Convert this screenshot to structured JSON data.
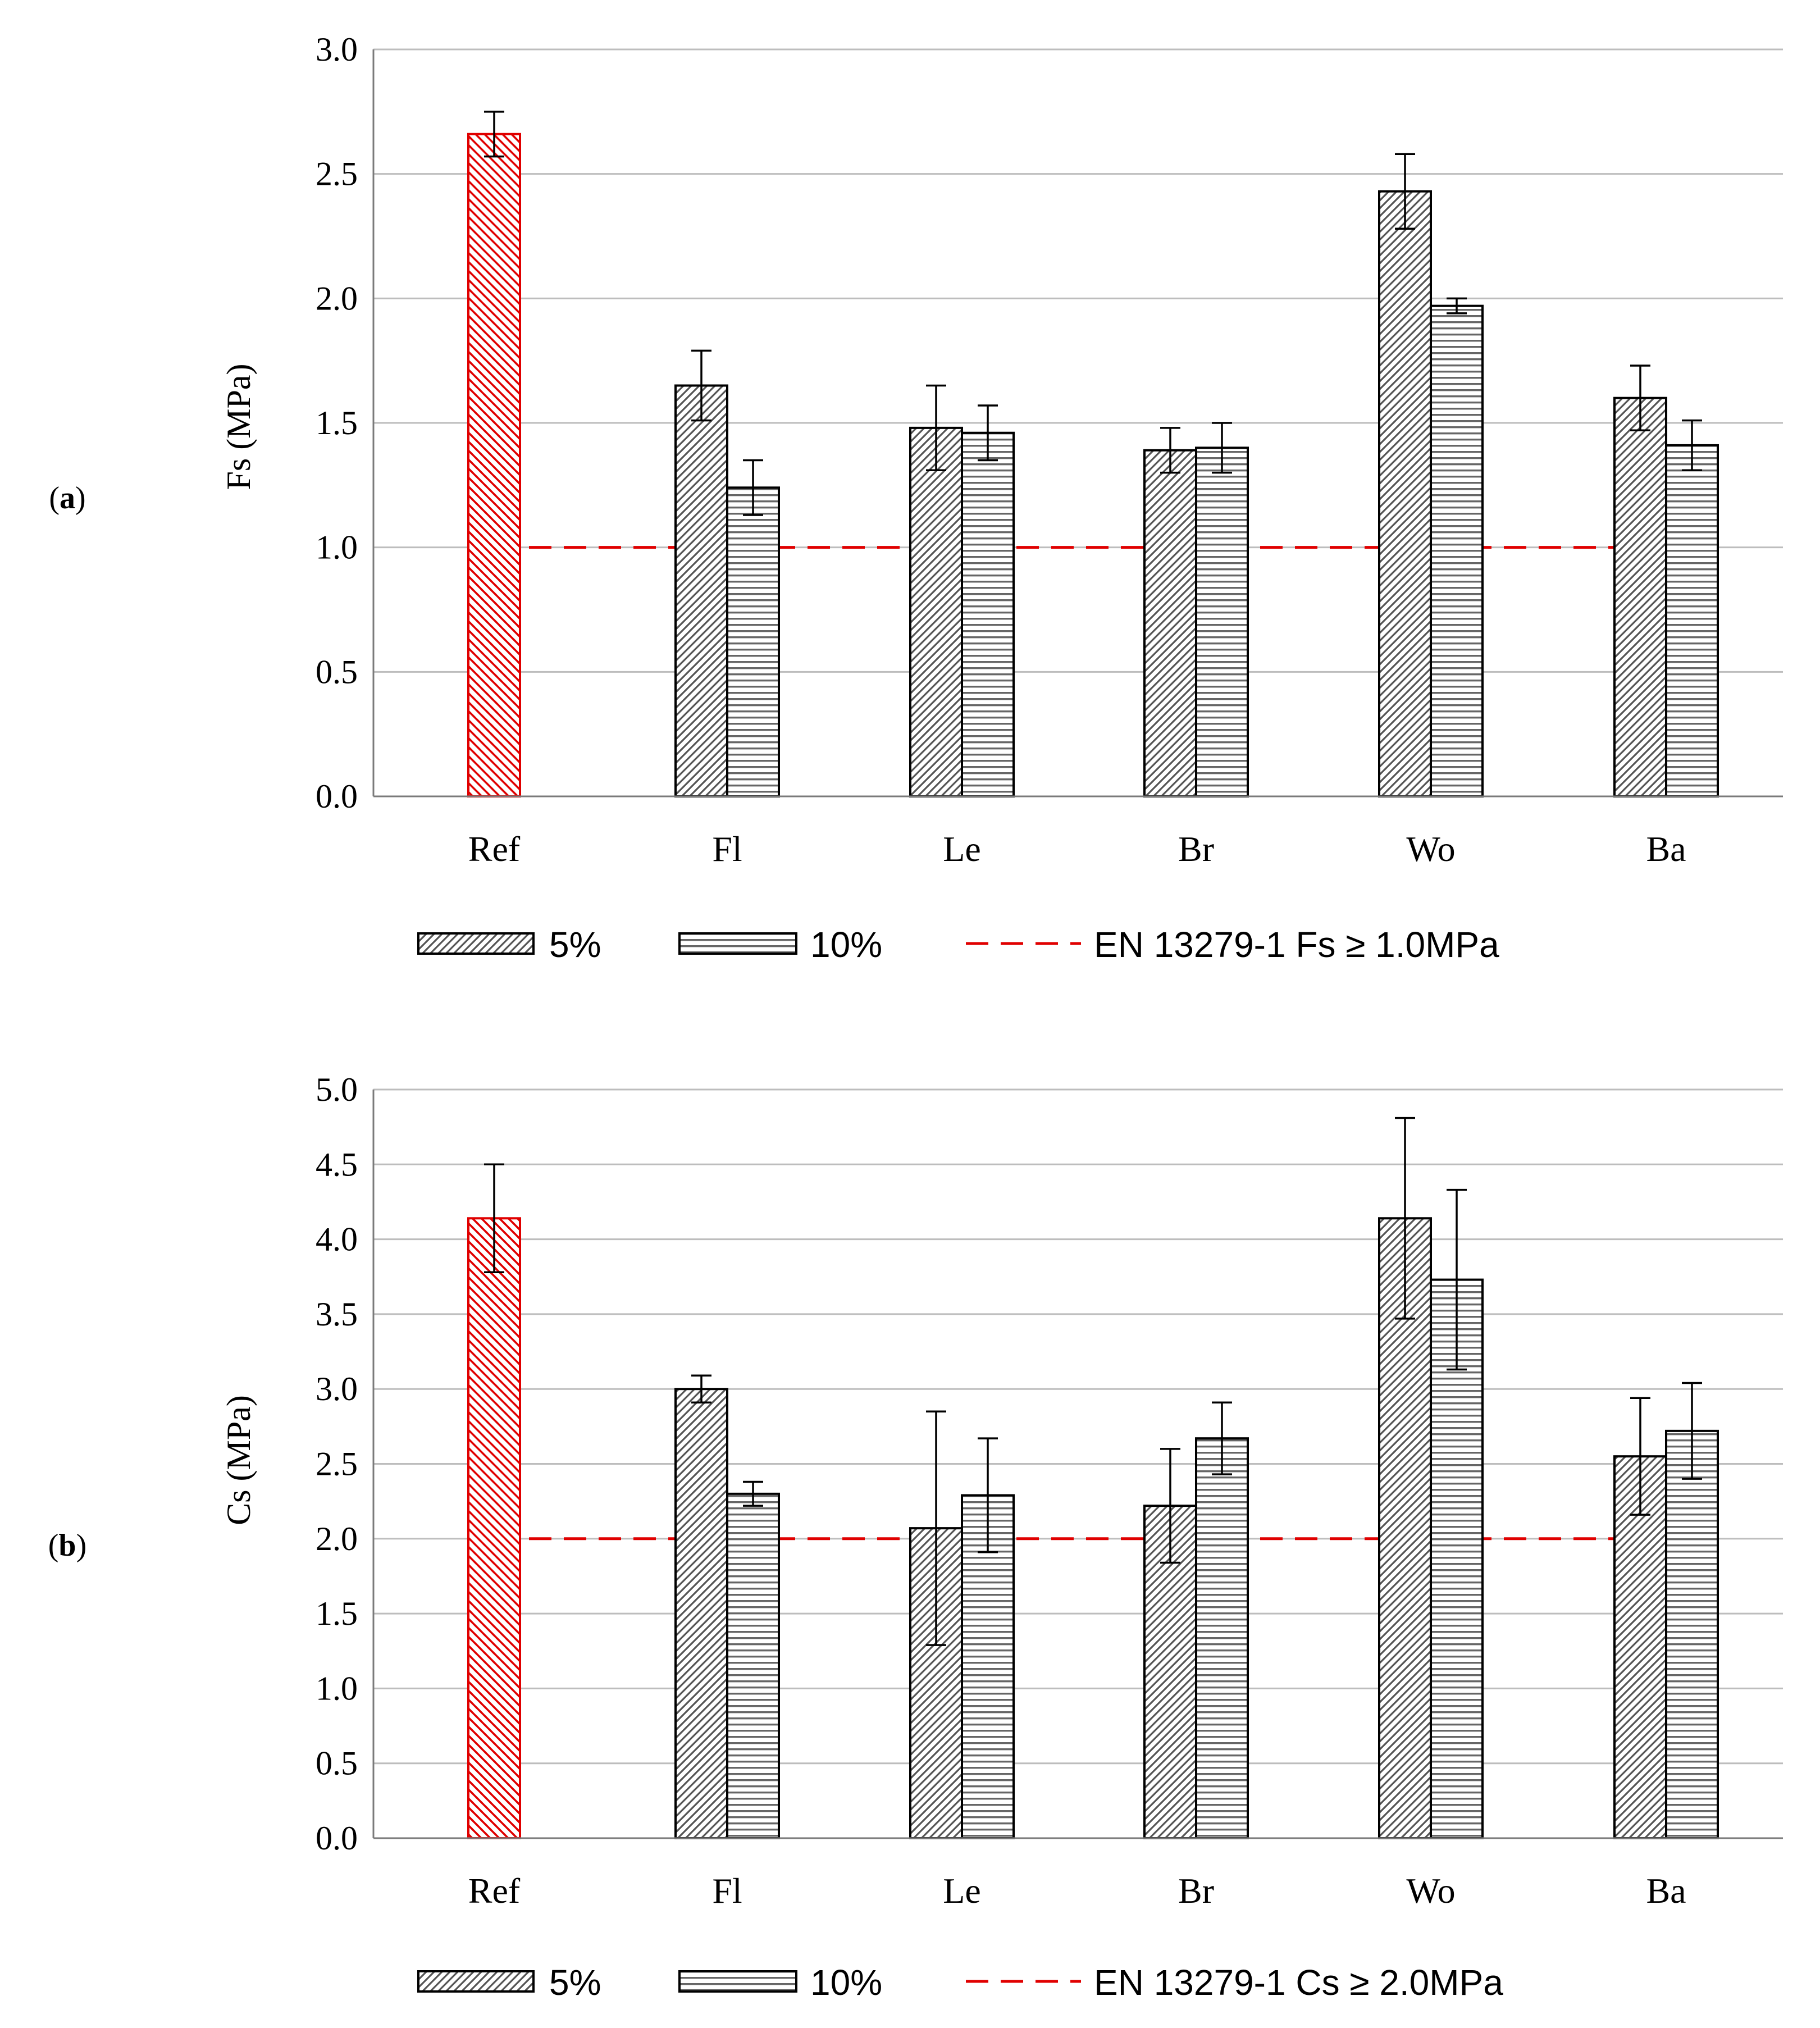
{
  "chart_data": [
    {
      "panel_label": "(a)",
      "panel_letter": "a",
      "type": "bar",
      "ylabel": "Fs (MPa)",
      "ylim": [
        0,
        3.0
      ],
      "yticks": [
        "0.0",
        "0.5",
        "1.0",
        "1.5",
        "2.0",
        "2.5",
        "3.0"
      ],
      "ytick_values": [
        0,
        0.5,
        1.0,
        1.5,
        2.0,
        2.5,
        3.0
      ],
      "grid": true,
      "categories": [
        "Ref",
        "Fl",
        "Le",
        "Br",
        "Wo",
        "Ba"
      ],
      "reference": {
        "value": 2.66,
        "error": 0.09,
        "color": "#e00000"
      },
      "series": [
        {
          "name": "5%",
          "pattern": "diagonal",
          "values": [
            null,
            1.65,
            1.48,
            1.39,
            2.43,
            1.6
          ],
          "errors": [
            null,
            0.14,
            0.17,
            0.09,
            0.15,
            0.13
          ]
        },
        {
          "name": "10%",
          "pattern": "horizontal",
          "values": [
            null,
            1.24,
            1.46,
            1.4,
            1.97,
            1.41
          ],
          "errors": [
            null,
            0.11,
            0.11,
            0.1,
            0.03,
            0.1
          ]
        }
      ],
      "threshold": {
        "value": 1.0,
        "label": "EN 13279-1  Fs ≥ 1.0MPa",
        "color": "#e00000"
      },
      "legend": {
        "position": "bottom",
        "items": [
          "5%",
          "10%",
          "EN 13279-1  Fs ≥ 1.0MPa"
        ]
      }
    },
    {
      "panel_label": "(b)",
      "panel_letter": "b",
      "type": "bar",
      "ylabel": "Cs (MPa)",
      "ylim": [
        0,
        5.0
      ],
      "yticks": [
        "0.0",
        "0.5",
        "1.0",
        "1.5",
        "2.0",
        "2.5",
        "3.0",
        "3.5",
        "4.0",
        "4.5",
        "5.0"
      ],
      "ytick_values": [
        0,
        0.5,
        1.0,
        1.5,
        2.0,
        2.5,
        3.0,
        3.5,
        4.0,
        4.5,
        5.0
      ],
      "grid": true,
      "categories": [
        "Ref",
        "Fl",
        "Le",
        "Br",
        "Wo",
        "Ba"
      ],
      "reference": {
        "value": 4.14,
        "error": 0.36,
        "color": "#e00000"
      },
      "series": [
        {
          "name": "5%",
          "pattern": "diagonal",
          "values": [
            null,
            3.0,
            2.07,
            2.22,
            4.14,
            2.55
          ],
          "errors": [
            null,
            0.09,
            0.78,
            0.38,
            0.67,
            0.39
          ]
        },
        {
          "name": "10%",
          "pattern": "horizontal",
          "values": [
            null,
            2.3,
            2.29,
            2.67,
            3.73,
            2.72
          ],
          "errors": [
            null,
            0.08,
            0.38,
            0.24,
            0.6,
            0.32
          ]
        }
      ],
      "threshold": {
        "value": 2.0,
        "label": "EN 13279-1  Cs ≥ 2.0MPa",
        "color": "#e00000"
      },
      "legend": {
        "position": "bottom",
        "items": [
          "5%",
          "10%",
          "EN 13279-1  Cs ≥ 2.0MPa"
        ]
      }
    }
  ]
}
